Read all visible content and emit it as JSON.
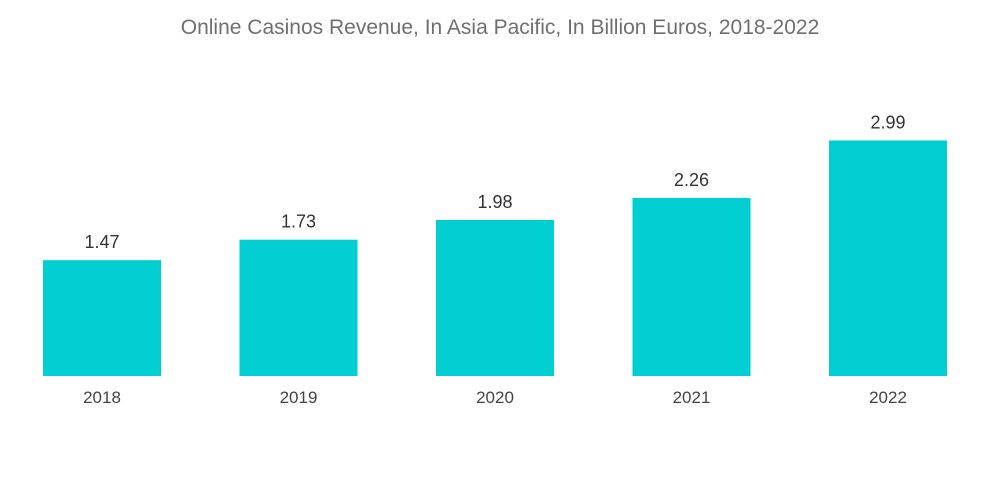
{
  "chart_data": {
    "type": "bar",
    "title": "Online Casinos Revenue, In Asia Pacific, In Billion Euros, 2018-2022",
    "categories": [
      "2018",
      "2019",
      "2020",
      "2021",
      "2022"
    ],
    "values": [
      1.47,
      1.73,
      1.98,
      2.26,
      2.99
    ],
    "value_labels": [
      "1.47",
      "1.73",
      "1.98",
      "2.26",
      "2.99"
    ],
    "xlabel": "",
    "ylabel": "",
    "ylim": [
      0,
      3.3
    ],
    "grid": false,
    "legend": "none",
    "bar_color": "#00ced1"
  }
}
